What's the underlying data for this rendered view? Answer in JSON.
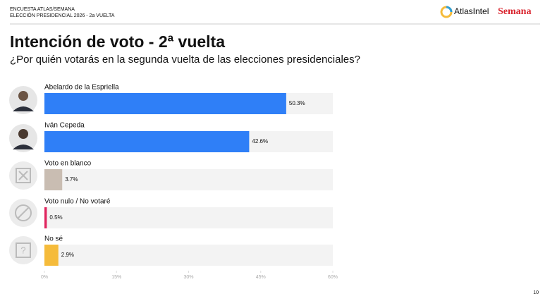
{
  "header": {
    "line1": "ENCUESTA ATLAS/SEMANA",
    "line2": "ELECCIÓN PRESIDENCIAL 2026 - 2a VUELTA",
    "logo1": "AtlasIntel",
    "logo2": "Semana"
  },
  "page_number": "10",
  "chart_data": {
    "type": "bar",
    "orientation": "horizontal",
    "title": "Intención de voto - 2ª vuelta",
    "subtitle": "¿Por quién votarás en la segunda vuelta de las elecciones presidenciales?",
    "categories": [
      "Abelardo de la Espriella",
      "Iván Cepeda",
      "Voto en blanco",
      "Voto nulo / No votaré",
      "No sé"
    ],
    "values": [
      50.3,
      42.6,
      3.7,
      0.5,
      2.9
    ],
    "value_labels": [
      "50.3%",
      "42.6%",
      "3.7%",
      "0.5%",
      "2.9%"
    ],
    "colors": [
      "#2f7ff7",
      "#2f7ff7",
      "#c9bdb2",
      "#e0245e",
      "#f5bb3b"
    ],
    "xlim": [
      0,
      60
    ],
    "xticks": [
      {
        "value": 0,
        "label": "0%"
      },
      {
        "value": 15,
        "label": "15%"
      },
      {
        "value": 30,
        "label": "30%"
      },
      {
        "value": 45,
        "label": "45%"
      },
      {
        "value": 60,
        "label": "60%"
      }
    ]
  }
}
